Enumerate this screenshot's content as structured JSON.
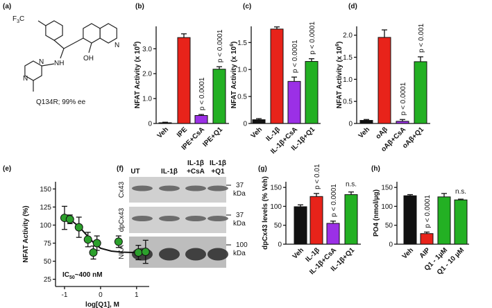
{
  "structure": {
    "panel": "(a)",
    "cf3": [
      "F",
      "3",
      "C"
    ],
    "nh": "NH",
    "oh": "OH",
    "n_quinoline": "N",
    "n_pyr1": "N",
    "n_pyr2": "N",
    "caption": "Q134R; 99% ee"
  },
  "blot": {
    "panel": "(f)",
    "lanes": [
      [
        "UT"
      ],
      [
        "IL-1β"
      ],
      [
        "IL-1β",
        "+CsA"
      ],
      [
        "IL-1β",
        "+Q1"
      ]
    ],
    "rows": [
      "Cx43",
      "dpCx43",
      "NKA"
    ],
    "markers": [
      [
        "37",
        "kDa"
      ],
      [
        "37",
        "kDa"
      ],
      [
        "100",
        "kDa"
      ]
    ]
  },
  "chart_data": [
    {
      "type": "bar",
      "panel": "(b)",
      "ylabel": [
        "NFAT Activity (x 10",
        "6",
        ")"
      ],
      "categories": [
        "Veh",
        "IPE",
        "IPE+CsA",
        "IPE+Q1"
      ],
      "values": [
        0.03,
        3.45,
        0.32,
        2.18
      ],
      "errors": [
        0.02,
        0.15,
        0.04,
        0.1
      ],
      "colors": [
        "#111111",
        "#e8231a",
        "#9b30e6",
        "#23b023"
      ],
      "annotations": [
        null,
        null,
        "p < 0.0001",
        "p < 0.0001"
      ],
      "ylim": [
        0,
        3.9
      ],
      "yticks": [
        0,
        {
          "value": 1,
          "label": "1.0"
        },
        {
          "value": 2,
          "label": "2.0"
        },
        {
          "value": 3,
          "label": "3.0"
        }
      ]
    },
    {
      "type": "bar",
      "panel": "(c)",
      "ylabel": [
        "NFAT Activity (x 10",
        "6",
        ")"
      ],
      "categories": [
        "Veh",
        "IL-1β",
        "IL-1β+CsA",
        "IL-1β+Q1"
      ],
      "values": [
        0.07,
        1.75,
        0.78,
        1.15
      ],
      "errors": [
        0.02,
        0.04,
        0.08,
        0.05
      ],
      "colors": [
        "#111111",
        "#e8231a",
        "#9b30e6",
        "#23b023"
      ],
      "annotations": [
        null,
        null,
        "p < 0.0001",
        "p < 0.0001"
      ],
      "ylim": [
        0,
        1.8
      ],
      "yticks": [
        0,
        0.5,
        {
          "value": 1,
          "label": "1.0"
        },
        1.5
      ]
    },
    {
      "type": "bar",
      "panel": "(d)",
      "ylabel": [
        "NFAT Activity (x 10",
        "6",
        ")"
      ],
      "categories": [
        "Veh",
        "oAβ",
        "oAβ+CsA",
        "oAβ+Q1"
      ],
      "values": [
        0.07,
        1.95,
        0.05,
        1.4
      ],
      "errors": [
        0.02,
        0.17,
        0.04,
        0.11
      ],
      "colors": [
        "#111111",
        "#e8231a",
        "#9b30e6",
        "#23b023"
      ],
      "annotations": [
        null,
        null,
        "p < 0.0001",
        "p < 0.001"
      ],
      "ylim": [
        0,
        2.2
      ],
      "yticks": [
        0,
        0.5,
        {
          "value": 1,
          "label": "1.0"
        },
        1.5,
        {
          "value": 2,
          "label": "2.0"
        }
      ]
    },
    {
      "type": "scatter",
      "panel": "(e)",
      "ylabel": "NFAT Activity (%)",
      "xlabel": "log[Q1], M",
      "annotation": [
        "IC",
        "50",
        "~400 nM"
      ],
      "x": [
        -1,
        -0.85,
        -0.6,
        -0.35,
        -0.2,
        -0.1,
        0.5,
        1.05,
        1.25
      ],
      "y": [
        110,
        108,
        97,
        80,
        62,
        75,
        77,
        62,
        63
      ],
      "errors": [
        16,
        6,
        14,
        10,
        9,
        10,
        8,
        10,
        16
      ],
      "color": "#2ca02c",
      "fit": {
        "x": [
          -1.1,
          -0.8,
          -0.6,
          -0.4,
          -0.2,
          0,
          0.3,
          0.6,
          0.9,
          1.2
        ],
        "y": [
          111,
          106,
          98,
          87,
          76,
          68,
          64,
          62.5,
          62,
          62
        ]
      },
      "xlim": [
        -1.25,
        1.35
      ],
      "xticks": [
        -1,
        0,
        1
      ],
      "ylim": [
        15,
        160
      ],
      "yticks": [
        25,
        50,
        75,
        100,
        125,
        150
      ]
    },
    {
      "type": "bar",
      "panel": "(g)",
      "ylabel": "dpCx43 levels (% Veh)",
      "categories": [
        "Veh",
        "IL-1β",
        "IL-1β+CsA",
        "IL-1β+Q1"
      ],
      "values": [
        99,
        126,
        55,
        131
      ],
      "errors": [
        5,
        8,
        6,
        7
      ],
      "colors": [
        "#111111",
        "#e8231a",
        "#9b30e6",
        "#23b023"
      ],
      "annotations": [
        null,
        "p < 0.01",
        "p < 0.0001",
        "n.s."
      ],
      "ylim": [
        0,
        165
      ],
      "yticks": [
        0,
        50,
        100,
        150
      ]
    },
    {
      "type": "bar",
      "panel": "(h)",
      "ylabel": "PO4 (nmol/µg)",
      "categories": [
        "Veh",
        "AIP",
        "Q1 - 1µM",
        "Q1 - 10 µM"
      ],
      "values": [
        128,
        28,
        125,
        117
      ],
      "errors": [
        3,
        4,
        9,
        2
      ],
      "colors": [
        "#111111",
        "#e8231a",
        "#23b023",
        "#23b023"
      ],
      "annotations": [
        null,
        "p < 0.0001",
        null,
        "n.s."
      ],
      "ylim": [
        0,
        165
      ],
      "yticks": [
        0,
        50,
        100,
        150
      ]
    }
  ]
}
